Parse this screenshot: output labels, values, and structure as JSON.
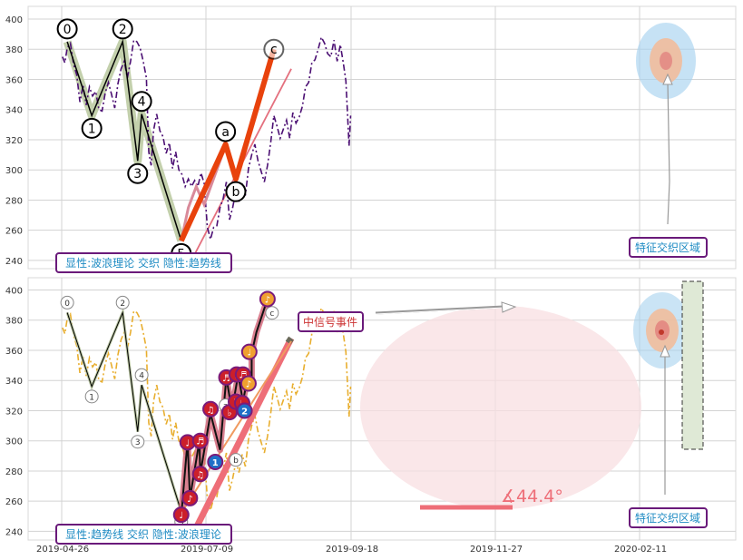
{
  "chart_data": [
    {
      "type": "line",
      "ylim": [
        234,
        410
      ],
      "yticks": [
        240,
        260,
        280,
        300,
        320,
        340,
        360,
        380,
        400
      ],
      "grid": true,
      "price_series": [
        {
          "d": 1,
          "v": 375
        },
        {
          "d": 4,
          "v": 371
        },
        {
          "d": 7,
          "v": 381
        },
        {
          "d": 11,
          "v": 384
        },
        {
          "d": 15,
          "v": 370
        },
        {
          "d": 19,
          "v": 363
        },
        {
          "d": 23,
          "v": 345
        },
        {
          "d": 27,
          "v": 356
        },
        {
          "d": 31,
          "v": 343
        },
        {
          "d": 35,
          "v": 355
        },
        {
          "d": 39,
          "v": 349
        },
        {
          "d": 43,
          "v": 352
        },
        {
          "d": 47,
          "v": 340
        },
        {
          "d": 51,
          "v": 339
        },
        {
          "d": 55,
          "v": 351
        },
        {
          "d": 59,
          "v": 358
        },
        {
          "d": 63,
          "v": 350
        },
        {
          "d": 67,
          "v": 341
        },
        {
          "d": 71,
          "v": 357
        },
        {
          "d": 75,
          "v": 367
        },
        {
          "d": 79,
          "v": 372
        },
        {
          "d": 83,
          "v": 361
        },
        {
          "d": 87,
          "v": 372
        },
        {
          "d": 91,
          "v": 386
        },
        {
          "d": 95,
          "v": 385
        },
        {
          "d": 99,
          "v": 381
        },
        {
          "d": 103,
          "v": 372
        },
        {
          "d": 107,
          "v": 361
        },
        {
          "d": 110,
          "v": 312
        },
        {
          "d": 113,
          "v": 303
        },
        {
          "d": 116,
          "v": 326
        },
        {
          "d": 120,
          "v": 337
        },
        {
          "d": 124,
          "v": 326
        },
        {
          "d": 128,
          "v": 322
        },
        {
          "d": 132,
          "v": 311
        },
        {
          "d": 136,
          "v": 318
        },
        {
          "d": 140,
          "v": 301
        },
        {
          "d": 144,
          "v": 312
        },
        {
          "d": 148,
          "v": 300
        },
        {
          "d": 152,
          "v": 297
        },
        {
          "d": 156,
          "v": 289
        },
        {
          "d": 160,
          "v": 294
        },
        {
          "d": 164,
          "v": 289
        },
        {
          "d": 168,
          "v": 293
        },
        {
          "d": 172,
          "v": 289
        },
        {
          "d": 176,
          "v": 298
        },
        {
          "d": 180,
          "v": 291
        },
        {
          "d": 184,
          "v": 262
        },
        {
          "d": 188,
          "v": 254
        },
        {
          "d": 192,
          "v": 262
        },
        {
          "d": 196,
          "v": 263
        },
        {
          "d": 200,
          "v": 275
        },
        {
          "d": 204,
          "v": 281
        },
        {
          "d": 208,
          "v": 292
        },
        {
          "d": 212,
          "v": 267
        },
        {
          "d": 216,
          "v": 275
        },
        {
          "d": 220,
          "v": 286
        },
        {
          "d": 224,
          "v": 279
        },
        {
          "d": 228,
          "v": 291
        },
        {
          "d": 232,
          "v": 283
        },
        {
          "d": 236,
          "v": 301
        },
        {
          "d": 240,
          "v": 310
        },
        {
          "d": 244,
          "v": 317
        },
        {
          "d": 248,
          "v": 306
        },
        {
          "d": 252,
          "v": 299
        },
        {
          "d": 256,
          "v": 292
        },
        {
          "d": 260,
          "v": 303
        },
        {
          "d": 264,
          "v": 318
        },
        {
          "d": 268,
          "v": 336
        },
        {
          "d": 272,
          "v": 329
        },
        {
          "d": 276,
          "v": 321
        },
        {
          "d": 280,
          "v": 327
        },
        {
          "d": 284,
          "v": 333
        },
        {
          "d": 288,
          "v": 321
        },
        {
          "d": 292,
          "v": 338
        },
        {
          "d": 296,
          "v": 331
        },
        {
          "d": 300,
          "v": 335
        },
        {
          "d": 304,
          "v": 342
        },
        {
          "d": 308,
          "v": 355
        },
        {
          "d": 312,
          "v": 358
        },
        {
          "d": 316,
          "v": 371
        },
        {
          "d": 320,
          "v": 373
        },
        {
          "d": 324,
          "v": 380
        },
        {
          "d": 328,
          "v": 388
        },
        {
          "d": 332,
          "v": 384
        },
        {
          "d": 336,
          "v": 377
        },
        {
          "d": 340,
          "v": 375
        },
        {
          "d": 344,
          "v": 386
        },
        {
          "d": 348,
          "v": 372
        },
        {
          "d": 352,
          "v": 383
        },
        {
          "d": 356,
          "v": 370
        },
        {
          "d": 359,
          "v": 359
        },
        {
          "d": 361,
          "v": 338
        },
        {
          "d": 363,
          "v": 316
        },
        {
          "d": 365,
          "v": 336
        }
      ],
      "wave_points": [
        {
          "label": "0",
          "d": 7,
          "v": 385
        },
        {
          "label": "1",
          "d": 38,
          "v": 336
        },
        {
          "label": "2",
          "d": 77,
          "v": 385
        },
        {
          "label": "3",
          "d": 96,
          "v": 306
        },
        {
          "label": "4",
          "d": 101,
          "v": 337
        },
        {
          "label": "5",
          "d": 151,
          "v": 253
        },
        {
          "label": "a",
          "d": 207,
          "v": 317
        },
        {
          "label": "b",
          "d": 220,
          "v": 294
        },
        {
          "label": "c",
          "d": 268,
          "v": 380
        }
      ],
      "trend_line": {
        "from": {
          "d": 153,
          "v": 229
        },
        "to": {
          "d": 290,
          "v": 367
        }
      },
      "legend_text": "显性:波浪理论 交织 隐性:趋势线",
      "zone_label": "特征交织区域"
    },
    {
      "type": "line",
      "ylim": [
        234,
        410
      ],
      "yticks": [
        240,
        260,
        280,
        300,
        320,
        340,
        360,
        380,
        400
      ],
      "xtick_labels": [
        "2019-04-26",
        "2019-07-09",
        "2019-09-18",
        "2019-11-27",
        "2020-02-11"
      ],
      "grid": true,
      "channel": [
        {
          "d": 151,
          "v": 250
        },
        {
          "d": 159,
          "v": 300
        },
        {
          "d": 162,
          "v": 262
        },
        {
          "d": 174,
          "v": 300
        },
        {
          "d": 175,
          "v": 278
        },
        {
          "d": 188,
          "v": 318
        },
        {
          "d": 200,
          "v": 294
        },
        {
          "d": 208,
          "v": 342
        },
        {
          "d": 215,
          "v": 320
        },
        {
          "d": 223,
          "v": 344
        },
        {
          "d": 229,
          "v": 326
        },
        {
          "d": 236,
          "v": 345
        },
        {
          "d": 240,
          "v": 338
        },
        {
          "d": 240,
          "v": 358
        },
        {
          "d": 246,
          "v": 372
        },
        {
          "d": 260,
          "v": 394
        }
      ],
      "notes": [
        {
          "sym": "♩",
          "d": 151,
          "v": 251,
          "c": "red"
        },
        {
          "sym": "♩",
          "d": 159,
          "v": 299,
          "c": "red"
        },
        {
          "sym": "♪",
          "d": 162,
          "v": 262,
          "c": "red"
        },
        {
          "sym": "♬",
          "d": 175,
          "v": 300,
          "c": "red"
        },
        {
          "sym": "♫",
          "d": 175,
          "v": 278,
          "c": "red"
        },
        {
          "sym": "♫",
          "d": 188,
          "v": 321,
          "c": "red"
        },
        {
          "sym": "1",
          "d": 194,
          "v": 286,
          "c": "blue"
        },
        {
          "sym": "♬",
          "d": 208,
          "v": 342,
          "c": "red"
        },
        {
          "sym": "♭",
          "d": 212,
          "v": 319,
          "c": "red"
        },
        {
          "sym": "♭",
          "d": 221,
          "v": 344,
          "c": "red"
        },
        {
          "sym": "♭",
          "d": 220,
          "v": 326,
          "c": "red"
        },
        {
          "sym": "♬",
          "d": 229,
          "v": 344,
          "c": "red"
        },
        {
          "sym": "♭",
          "d": 228,
          "v": 325,
          "c": "red"
        },
        {
          "sym": "2",
          "d": 231,
          "v": 320,
          "c": "blue"
        },
        {
          "sym": "♪",
          "d": 236,
          "v": 338,
          "c": "orange"
        },
        {
          "sym": "♩",
          "d": 237,
          "v": 359,
          "c": "orange"
        },
        {
          "sym": "♪",
          "d": 260,
          "v": 394,
          "c": "orange"
        }
      ],
      "thick_trend": {
        "from": {
          "d": 160,
          "v": 232
        },
        "to": {
          "d": 290,
          "v": 368
        }
      },
      "ref_lines": [
        {
          "from": {
            "d": 151,
            "v": 252
          },
          "to": {
            "d": 290,
            "v": 366
          }
        }
      ],
      "angle_label": "∡44.4°",
      "event_label": "中信号事件",
      "legend_text": "显性:趋势线 交织 隐性:波浪理论",
      "zone_label": "特征交织区域"
    }
  ],
  "colors": {
    "dark_purple": "#4b0f73",
    "gold": "#e8ae2e",
    "orange_red": "#e8420c",
    "trend_pink": "#e4707e",
    "wave_green": "#b9c89d",
    "label_blue": "#1e8bc3",
    "note_red": "#cc1f2a",
    "note_blue": "#1f6fc8",
    "note_orange": "#f0a030",
    "zone_blue": "#a7d2ef",
    "zone_peach": "#f1bd9c",
    "ellipse_pink": "#f8dfe1",
    "rect_green": "#dfe9d6"
  }
}
